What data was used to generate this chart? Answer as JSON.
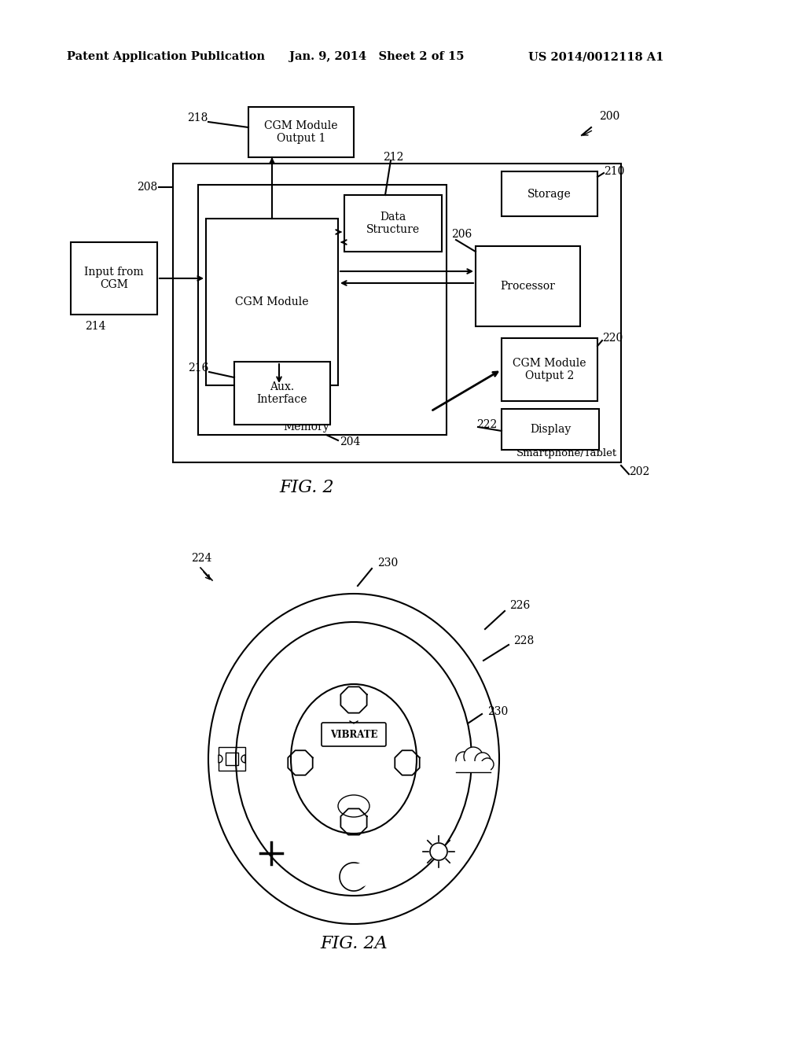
{
  "bg_color": "#ffffff",
  "header_left": "Patent Application Publication",
  "header_mid": "Jan. 9, 2014   Sheet 2 of 15",
  "header_right": "US 2014/0012118 A1",
  "fig2_label": "FIG. 2",
  "fig2a_label": "FIG. 2A",
  "ref_200": "200",
  "ref_202": "202",
  "ref_204": "204",
  "ref_206": "206",
  "ref_208": "208",
  "ref_210": "210",
  "ref_212": "212",
  "ref_214": "214",
  "ref_216": "216",
  "ref_218": "218",
  "ref_220": "220",
  "ref_222": "222",
  "ref_224": "224",
  "ref_226": "226",
  "ref_228": "228",
  "ref_230a": "230",
  "ref_230b": "230",
  "smartphone_label": "Smartphone/Tablet",
  "memory_label": "Memory",
  "box_cgm_out1": "CGM Module\nOutput 1",
  "box_input_cgm": "Input from\nCGM",
  "box_data_struct": "Data\nStructure",
  "box_cgm_module": "CGM Module",
  "box_processor": "Processor",
  "box_storage": "Storage",
  "box_aux": "Aux.\nInterface",
  "box_cgm_out2": "CGM Module\nOutput 2",
  "box_display": "Display",
  "vibrate_label": "VIBRATE"
}
